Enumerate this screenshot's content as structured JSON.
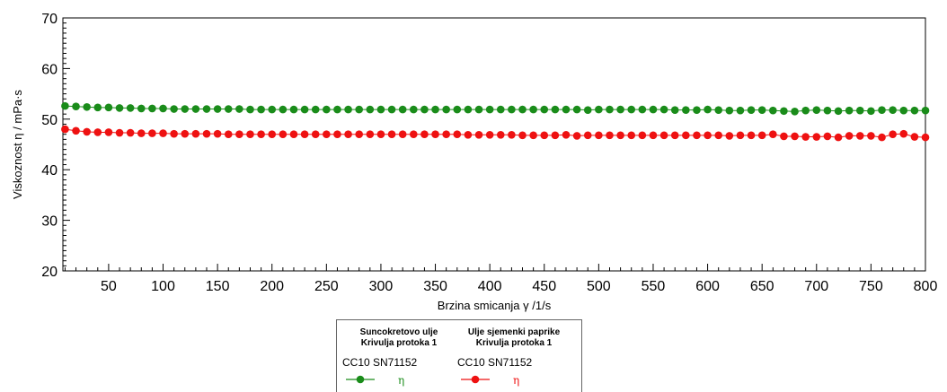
{
  "chart_data": {
    "type": "scatter",
    "title": "",
    "xlabel": "Brzina smicanja  γ /1/s",
    "ylabel": "Viskoznost η / mPa·s",
    "xlim": [
      8,
      800
    ],
    "ylim": [
      20,
      70
    ],
    "xticks": [
      50,
      100,
      150,
      200,
      250,
      300,
      350,
      400,
      450,
      500,
      550,
      600,
      650,
      700,
      750,
      800
    ],
    "yticks": [
      20,
      30,
      40,
      50,
      60,
      70
    ],
    "grid": false,
    "series": [
      {
        "color": "#1a8c1a",
        "x_start": 10,
        "x_step": 10,
        "values": [
          52.6,
          52.5,
          52.4,
          52.3,
          52.3,
          52.2,
          52.2,
          52.1,
          52.1,
          52.1,
          52.0,
          52.0,
          52.0,
          52.0,
          52.0,
          52.0,
          52.0,
          51.9,
          51.9,
          51.9,
          51.9,
          51.9,
          51.9,
          51.9,
          51.9,
          51.9,
          51.9,
          51.9,
          51.9,
          51.9,
          51.9,
          51.9,
          51.9,
          51.9,
          51.9,
          51.9,
          51.9,
          51.9,
          51.9,
          51.9,
          51.9,
          51.9,
          51.9,
          51.9,
          51.9,
          51.9,
          51.9,
          51.9,
          51.8,
          51.9,
          51.9,
          51.9,
          51.9,
          51.9,
          51.9,
          51.9,
          51.8,
          51.8,
          51.8,
          51.9,
          51.8,
          51.7,
          51.7,
          51.8,
          51.8,
          51.7,
          51.6,
          51.5,
          51.7,
          51.8,
          51.7,
          51.6,
          51.7,
          51.7,
          51.6,
          51.8,
          51.8,
          51.7,
          51.7,
          51.7
        ]
      },
      {
        "color": "#ee1111",
        "x_start": 10,
        "x_step": 10,
        "values": [
          48.0,
          47.7,
          47.5,
          47.4,
          47.4,
          47.3,
          47.3,
          47.2,
          47.2,
          47.2,
          47.1,
          47.1,
          47.1,
          47.1,
          47.1,
          47.0,
          47.0,
          47.0,
          47.0,
          47.0,
          47.0,
          47.0,
          47.0,
          47.0,
          47.0,
          47.0,
          47.0,
          47.0,
          47.0,
          47.0,
          47.0,
          47.0,
          47.0,
          47.0,
          47.0,
          47.0,
          47.0,
          46.9,
          46.9,
          46.9,
          46.9,
          46.9,
          46.8,
          46.8,
          46.8,
          46.8,
          46.9,
          46.7,
          46.8,
          46.8,
          46.8,
          46.8,
          46.8,
          46.8,
          46.8,
          46.8,
          46.8,
          46.8,
          46.8,
          46.8,
          46.8,
          46.7,
          46.8,
          46.8,
          46.8,
          47.0,
          46.6,
          46.6,
          46.5,
          46.5,
          46.6,
          46.4,
          46.7,
          46.7,
          46.7,
          46.4,
          47.0,
          47.1,
          46.5,
          46.4
        ]
      }
    ],
    "legend": {
      "position": "bottom-center",
      "entries": [
        {
          "title_line1": "Suncokretovo ulje",
          "title_line2": "Krivulja protoka 1",
          "instrument": "CC10 SN71152",
          "symbol": "η",
          "color": "#1a8c1a"
        },
        {
          "title_line1": "Ulje sjemenki paprike",
          "title_line2": "Krivulja protoka 1",
          "instrument": "CC10 SN71152",
          "symbol": "η",
          "color": "#ee1111"
        }
      ]
    }
  }
}
